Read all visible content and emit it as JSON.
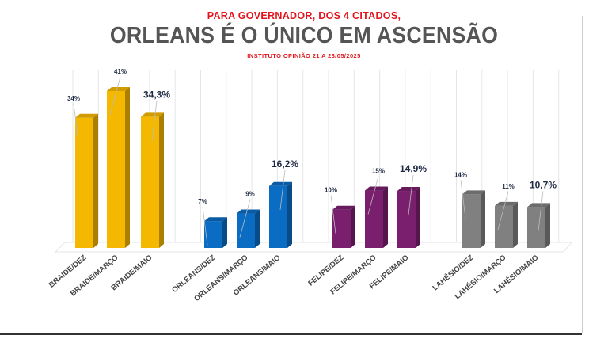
{
  "header": {
    "kicker": "PARA GOVERNADOR, DOS 4 CITADOS,",
    "title": "ORLEANS É O ÚNICO EM ASCENSÃO",
    "source": "INSTITUTO OPINIÃO 21 A 23/05/2025"
  },
  "chart_data": {
    "type": "bar",
    "title": "ORLEANS É O ÚNICO EM ASCENSÃO",
    "categories": [
      "BRAIDE/DEZ",
      "BRAIDE/MARÇO",
      "BRAIDE/MAIO",
      "ORLEANS/DEZ",
      "ORLEANS/MARÇO",
      "ORLEANS/MAIO",
      "FELIPE/DEZ",
      "FELIPE/MARÇO",
      "FELIPE/MAIO",
      "LAHÉSIO/DEZ",
      "LAHÉSIO/MARÇO",
      "LAHÉSIO/MAIO"
    ],
    "values": [
      34,
      41,
      34.3,
      7,
      9,
      16.2,
      10,
      15,
      14.9,
      14,
      11,
      10.7
    ],
    "labels": [
      "34%",
      "41%",
      "34,3%",
      "7%",
      "9%",
      "16,2%",
      "10%",
      "15%",
      "14,9%",
      "14%",
      "11%",
      "10,7%"
    ],
    "colors": [
      "#f5b800",
      "#f5b800",
      "#f5b800",
      "#0a6cc2",
      "#0a6cc2",
      "#0a6cc2",
      "#7a1f6e",
      "#7a1f6e",
      "#7a1f6e",
      "#808080",
      "#808080",
      "#808080"
    ],
    "xlabel": "",
    "ylabel": "",
    "ylim": [
      0,
      45
    ],
    "grid": true
  }
}
